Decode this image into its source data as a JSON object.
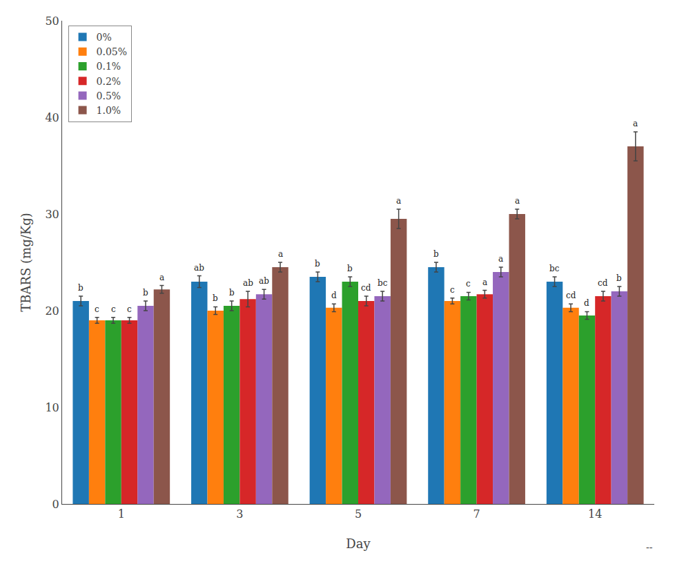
{
  "chart_data": {
    "type": "bar",
    "xlabel": "Day",
    "ylabel": "TBARS (mg/Kg)",
    "categories": [
      "1",
      "3",
      "5",
      "7",
      "14"
    ],
    "series": [
      {
        "name": "0%",
        "values": [
          21.0,
          23.0,
          23.5,
          24.5,
          23.0
        ],
        "errors": [
          0.5,
          0.6,
          0.5,
          0.5,
          0.5
        ],
        "sig_labels": [
          "b",
          "ab",
          "b",
          "b",
          "bc"
        ]
      },
      {
        "name": "0.05%",
        "values": [
          19.0,
          20.0,
          20.3,
          21.0,
          20.3
        ],
        "errors": [
          0.3,
          0.4,
          0.4,
          0.3,
          0.4
        ],
        "sig_labels": [
          "c",
          "b",
          "d",
          "c",
          "cd"
        ]
      },
      {
        "name": "0.1%",
        "values": [
          19.0,
          20.5,
          23.0,
          21.5,
          19.5
        ],
        "errors": [
          0.3,
          0.5,
          0.5,
          0.4,
          0.4
        ],
        "sig_labels": [
          "c",
          "b",
          "b",
          "c",
          "d"
        ]
      },
      {
        "name": "0.2%",
        "values": [
          19.0,
          21.2,
          21.0,
          21.7,
          21.5
        ],
        "errors": [
          0.3,
          0.8,
          0.5,
          0.4,
          0.5
        ],
        "sig_labels": [
          "c",
          "ab",
          "cd",
          "a",
          "cd"
        ]
      },
      {
        "name": "0.5%",
        "values": [
          20.5,
          21.7,
          21.5,
          24.0,
          22.0
        ],
        "errors": [
          0.5,
          0.5,
          0.5,
          0.5,
          0.5
        ],
        "sig_labels": [
          "b",
          "ab",
          "bc",
          "a",
          "b"
        ]
      },
      {
        "name": "1.0%",
        "values": [
          22.2,
          24.5,
          29.5,
          30.0,
          37.0
        ],
        "errors": [
          0.4,
          0.5,
          1.0,
          0.5,
          1.5
        ],
        "sig_labels": [
          "a",
          "a",
          "a",
          "a",
          "a"
        ]
      }
    ],
    "ylim": [
      0,
      50
    ],
    "yticks": [
      0,
      10,
      20,
      30,
      40,
      50
    ],
    "grid": false,
    "legend": "upper left",
    "annotations": [
      "--"
    ]
  }
}
